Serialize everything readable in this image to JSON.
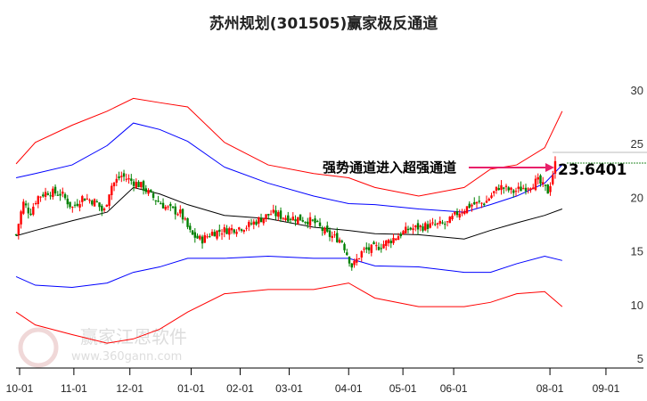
{
  "title": "苏州规划(301505)赢家极反通道",
  "watermark": {
    "brand": "赢家江恩软件",
    "url": "www.360gann.com",
    "seal": "江赢恩家"
  },
  "chart_data": {
    "type": "candlestick-channel",
    "title": "苏州规划(301505)赢家极反通道",
    "x_ticks": [
      {
        "label": "10-01",
        "day": 0
      },
      {
        "label": "11-01",
        "day": 31
      },
      {
        "label": "12-01",
        "day": 63
      },
      {
        "label": "01-01",
        "day": 98
      },
      {
        "label": "02-01",
        "day": 126
      },
      {
        "label": "03-01",
        "day": 154
      },
      {
        "label": "04-01",
        "day": 188
      },
      {
        "label": "05-01",
        "day": 219
      },
      {
        "label": "06-01",
        "day": 248
      },
      {
        "label": "08-01",
        "day": 303
      },
      {
        "label": "09-01",
        "day": 335
      }
    ],
    "y_ticks": [
      5,
      10,
      15,
      20,
      25,
      30
    ],
    "ylim": [
      5,
      30
    ],
    "bands_days": [
      -2,
      9,
      30,
      50,
      65,
      80,
      96,
      117,
      142,
      168,
      188,
      203,
      228,
      254,
      269,
      284,
      300,
      310
    ],
    "upper_outer": [
      23.6,
      25.6,
      27.2,
      28.5,
      29.7,
      29.3,
      28.9,
      25.6,
      23.5,
      22.7,
      22.3,
      21.4,
      20.6,
      21.4,
      23.1,
      23.5,
      25.1,
      28.5
    ],
    "upper_inner": [
      22.3,
      22.7,
      23.5,
      25.3,
      27.4,
      26.8,
      25.7,
      23.3,
      21.8,
      20.6,
      19.9,
      19.8,
      19.4,
      19.1,
      19.8,
      20.6,
      21.8,
      23.5
    ],
    "lower_inner": [
      13.1,
      12.3,
      12.1,
      12.5,
      13.5,
      14.0,
      14.8,
      14.8,
      15.0,
      14.8,
      14.8,
      14.1,
      14.0,
      13.5,
      13.5,
      14.3,
      15.0,
      14.6
    ],
    "lower_outer": [
      9.8,
      8.6,
      7.7,
      6.9,
      7.3,
      8.2,
      9.8,
      11.5,
      11.9,
      11.9,
      12.5,
      11.1,
      10.3,
      10.3,
      10.7,
      11.5,
      11.7,
      10.3
    ],
    "moving_average": [
      16.9,
      17.4,
      18.3,
      19.1,
      21.4,
      20.8,
      19.8,
      18.8,
      18.5,
      17.7,
      17.4,
      17.1,
      17.0,
      16.6,
      17.4,
      18.1,
      18.8,
      19.4
    ],
    "close_path_days": [
      -2,
      2,
      6,
      10,
      16,
      24,
      30,
      36,
      44,
      48,
      52,
      58,
      64,
      70,
      76,
      84,
      92,
      98,
      104,
      110,
      120,
      130,
      138,
      144,
      150,
      160,
      168,
      176,
      184,
      190,
      196,
      204,
      212,
      222,
      232,
      244,
      250,
      258,
      266,
      274,
      282,
      290,
      296,
      302,
      306
    ],
    "close_path": [
      17,
      20,
      19,
      20.5,
      21,
      20.8,
      19.5,
      20.5,
      20,
      19,
      21.5,
      22.5,
      22,
      21.5,
      20.5,
      19.5,
      19,
      17,
      16.5,
      17.2,
      17.5,
      17.8,
      18.5,
      19,
      18.7,
      18.5,
      18.2,
      17,
      16.5,
      14,
      15.5,
      15.8,
      16.5,
      17.5,
      17.8,
      18,
      19,
      19.8,
      20,
      21.5,
      21,
      21.5,
      22,
      21,
      23.6
    ],
    "annotation": "强势通道进入超强通道",
    "last_price": "23.6401",
    "colors": {
      "up": "#ff0000",
      "down": "#008000",
      "outer": "#ff0000",
      "inner": "#0000ff",
      "ma": "#000000",
      "arrow": "#e8206a"
    }
  }
}
